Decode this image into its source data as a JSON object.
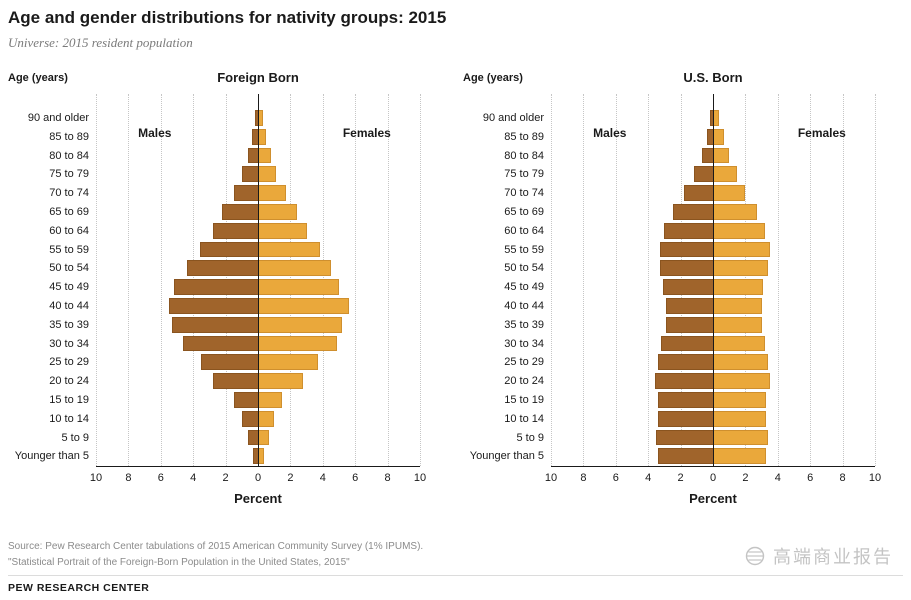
{
  "page": {
    "title": "Age and gender distributions for nativity groups: 2015",
    "subtitle": "Universe: 2015 resident population"
  },
  "axis": {
    "age_label": "Age (years)",
    "xlabel": "Percent",
    "male_label": "Males",
    "female_label": "Females",
    "ticks": [
      "10",
      "8",
      "6",
      "4",
      "2",
      "0",
      "2",
      "4",
      "6",
      "8",
      "10"
    ]
  },
  "colors": {
    "male": "#A0642B",
    "male_border": "#8A541F",
    "female": "#EAA83B",
    "female_border": "#CF8F2E",
    "grid": "#C6C6C6",
    "axis_line": "#1A1A1A"
  },
  "footer": {
    "source_line1": "Source: Pew Research Center tabulations of 2015 American Community Survey (1% IPUMS).",
    "source_line2": "\"Statistical Portrait of the Foreign-Born Population in the United States, 2015\"",
    "brand": "PEW RESEARCH CENTER",
    "watermark": "高端商业报告"
  },
  "chart_data": [
    {
      "type": "bar",
      "orientation": "population-pyramid",
      "title": "Foreign Born",
      "xlabel": "Percent",
      "xlim": [
        -10,
        10
      ],
      "grid": "dotted-vertical",
      "categories": [
        "90 and older",
        "85 to 89",
        "80 to 84",
        "75 to 79",
        "70 to 74",
        "65 to 69",
        "60 to 64",
        "55 to 59",
        "50 to 54",
        "45 to 49",
        "40 to 44",
        "35 to 39",
        "30 to 34",
        "25 to 29",
        "20 to 24",
        "15 to 19",
        "10 to 14",
        "5 to 9",
        "Younger than 5"
      ],
      "series": [
        {
          "name": "Males",
          "values": [
            0.2,
            0.4,
            0.6,
            1.0,
            1.5,
            2.2,
            2.8,
            3.6,
            4.4,
            5.2,
            5.5,
            5.3,
            4.6,
            3.5,
            2.8,
            1.5,
            1.0,
            0.6,
            0.3
          ]
        },
        {
          "name": "Females",
          "values": [
            0.3,
            0.5,
            0.8,
            1.1,
            1.7,
            2.4,
            3.0,
            3.8,
            4.5,
            5.0,
            5.6,
            5.2,
            4.9,
            3.7,
            2.8,
            1.5,
            1.0,
            0.7,
            0.4
          ]
        }
      ]
    },
    {
      "type": "bar",
      "orientation": "population-pyramid",
      "title": "U.S. Born",
      "xlabel": "Percent",
      "xlim": [
        -10,
        10
      ],
      "grid": "dotted-vertical",
      "categories": [
        "90 and older",
        "85 to 89",
        "80 to 84",
        "75 to 79",
        "70 to 74",
        "65 to 69",
        "60 to 64",
        "55 to 59",
        "50 to 54",
        "45 to 49",
        "40 to 44",
        "35 to 39",
        "30 to 34",
        "25 to 29",
        "20 to 24",
        "15 to 19",
        "10 to 14",
        "5 to 9",
        "Younger than 5"
      ],
      "series": [
        {
          "name": "Males",
          "values": [
            0.2,
            0.4,
            0.7,
            1.2,
            1.8,
            2.5,
            3.0,
            3.3,
            3.3,
            3.1,
            2.9,
            2.9,
            3.2,
            3.4,
            3.6,
            3.4,
            3.4,
            3.5,
            3.4
          ]
        },
        {
          "name": "Females",
          "values": [
            0.4,
            0.7,
            1.0,
            1.5,
            2.0,
            2.7,
            3.2,
            3.5,
            3.4,
            3.1,
            3.0,
            3.0,
            3.2,
            3.4,
            3.5,
            3.3,
            3.3,
            3.4,
            3.3
          ]
        }
      ]
    }
  ]
}
